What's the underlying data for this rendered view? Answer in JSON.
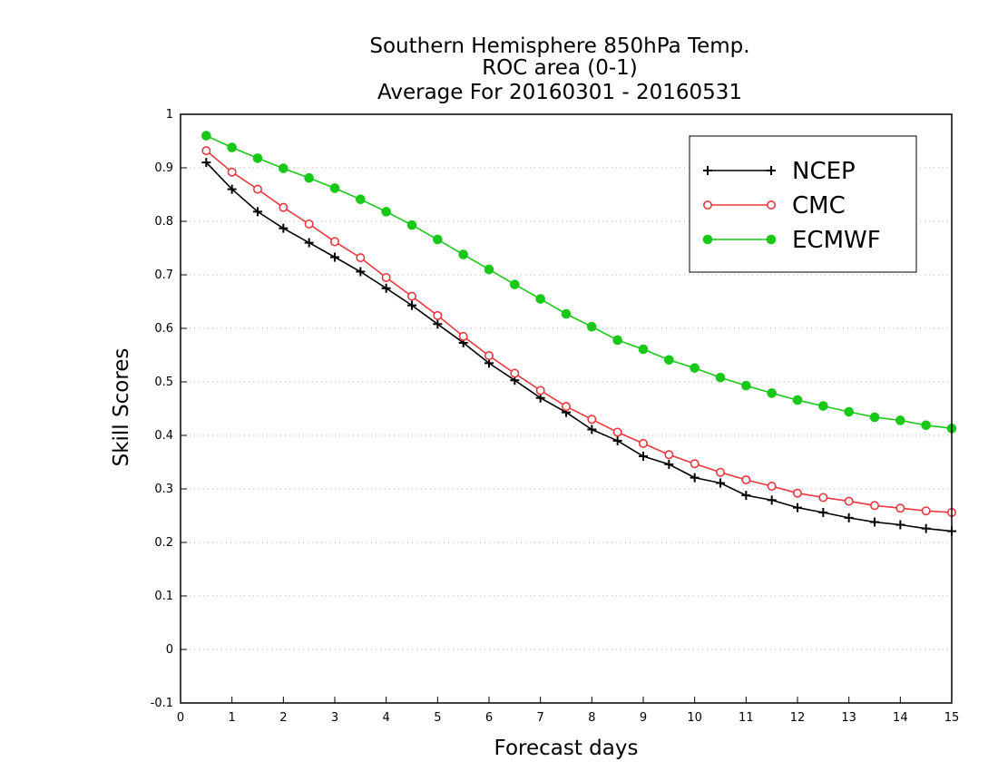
{
  "chart_data": {
    "type": "line",
    "title_lines": [
      "Southern Hemisphere 850hPa Temp.",
      "ROC area (0-1)",
      "Average For 20160301 - 20160531"
    ],
    "xlabel": "Forecast days",
    "ylabel": "Skill Scores",
    "xlim": [
      0,
      15
    ],
    "ylim": [
      -0.1,
      1
    ],
    "xticks": [
      0,
      1,
      2,
      3,
      4,
      5,
      6,
      7,
      8,
      9,
      10,
      11,
      12,
      13,
      14,
      15
    ],
    "xtick_labels": [
      "0",
      "1",
      "2",
      "3",
      "4",
      "5",
      "6",
      "7",
      "8",
      "9",
      "10",
      "11",
      "12",
      "13",
      "14",
      "15"
    ],
    "yticks": [
      -0.1,
      0,
      0.1,
      0.2,
      0.3,
      0.4,
      0.5,
      0.6,
      0.7,
      0.8,
      0.9,
      1
    ],
    "ytick_labels": [
      "-0.1",
      "0",
      "0.1",
      "0.2",
      "0.3",
      "0.4",
      "0.5",
      "0.6",
      "0.7",
      "0.8",
      "0.9",
      "1"
    ],
    "grid": "horizontal dotted",
    "legend_position": "top-right",
    "x": [
      0.5,
      1,
      1.5,
      2,
      2.5,
      3,
      3.5,
      4,
      4.5,
      5,
      5.5,
      6,
      6.5,
      7,
      7.5,
      8,
      8.5,
      9,
      9.5,
      10,
      10.5,
      11,
      11.5,
      12,
      12.5,
      13,
      13.5,
      14,
      14.5,
      15
    ],
    "series": [
      {
        "name": "NCEP",
        "color": "#000000",
        "marker": "plus",
        "values": [
          0.91,
          0.86,
          0.818,
          0.787,
          0.76,
          0.733,
          0.706,
          0.675,
          0.643,
          0.608,
          0.573,
          0.535,
          0.503,
          0.47,
          0.443,
          0.411,
          0.39,
          0.361,
          0.346,
          0.321,
          0.311,
          0.288,
          0.279,
          0.265,
          0.256,
          0.246,
          0.238,
          0.233,
          0.226,
          0.221
        ]
      },
      {
        "name": "CMC",
        "color": "#e8383d",
        "marker": "open-circle",
        "values": [
          0.932,
          0.892,
          0.86,
          0.826,
          0.795,
          0.762,
          0.732,
          0.695,
          0.66,
          0.624,
          0.585,
          0.549,
          0.516,
          0.484,
          0.454,
          0.43,
          0.406,
          0.385,
          0.364,
          0.347,
          0.331,
          0.317,
          0.305,
          0.292,
          0.284,
          0.277,
          0.269,
          0.264,
          0.259,
          0.256
        ]
      },
      {
        "name": "ECMWF",
        "color": "#19c819",
        "marker": "filled-circle",
        "values": [
          0.96,
          0.938,
          0.918,
          0.899,
          0.881,
          0.862,
          0.841,
          0.818,
          0.793,
          0.766,
          0.738,
          0.71,
          0.682,
          0.655,
          0.627,
          0.603,
          0.578,
          0.561,
          0.541,
          0.526,
          0.508,
          0.493,
          0.479,
          0.466,
          0.455,
          0.444,
          0.434,
          0.428,
          0.419,
          0.413
        ]
      }
    ]
  }
}
